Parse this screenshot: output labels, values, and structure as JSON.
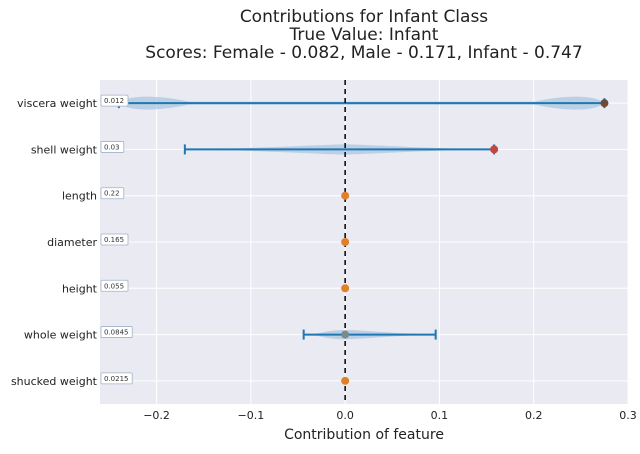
{
  "chart_data": {
    "type": "violin",
    "title": "Contributions for Infant Class",
    "subtitle": "True Value: Infant",
    "scores_line": "Scores: Female - 0.082, Male - 0.171, Infant - 0.747",
    "xlabel": "Contribution of feature",
    "xlim": [
      -0.26,
      0.3
    ],
    "xticks": [
      -0.2,
      -0.1,
      0.0,
      0.1,
      0.2,
      0.3
    ],
    "xtick_labels": [
      "−0.2",
      "−0.1",
      "0.0",
      "0.1",
      "0.2",
      "0.3"
    ],
    "grid": true,
    "reference_line_x": 0.0,
    "features": [
      {
        "name": "viscera weight",
        "value_label": "0.012",
        "min": -0.24,
        "max": 0.275,
        "point": 0.275,
        "point_color": "#6b4a3a",
        "spread": 0.38
      },
      {
        "name": "shell weight",
        "value_label": "0.03",
        "min": -0.17,
        "max": 0.158,
        "point": 0.158,
        "point_color": "#c0463f",
        "spread": 0.22
      },
      {
        "name": "length",
        "value_label": "0.22",
        "min": 0.0,
        "max": 0.0,
        "point": 0.0,
        "point_color": "#e0812a",
        "spread": 0
      },
      {
        "name": "diameter",
        "value_label": "0.165",
        "min": 0.0,
        "max": 0.0,
        "point": 0.0,
        "point_color": "#e0812a",
        "spread": 0
      },
      {
        "name": "height",
        "value_label": "0.055",
        "min": 0.0,
        "max": 0.0,
        "point": 0.0,
        "point_color": "#e0812a",
        "spread": 0
      },
      {
        "name": "whole weight",
        "value_label": "0.0845",
        "min": -0.044,
        "max": 0.096,
        "point": 0.0,
        "point_color": "#7b8a8c",
        "spread": 0.2
      },
      {
        "name": "shucked weight",
        "value_label": "0.0215",
        "min": 0.0,
        "max": 0.0,
        "point": 0.0,
        "point_color": "#e0812a",
        "spread": 0
      }
    ],
    "colors": {
      "plot_bg": "#eaeaf2",
      "grid": "#ffffff",
      "violin_fill": "#a8c4e0",
      "range_line": "#1f77b4",
      "zero_line": "#000000"
    }
  }
}
